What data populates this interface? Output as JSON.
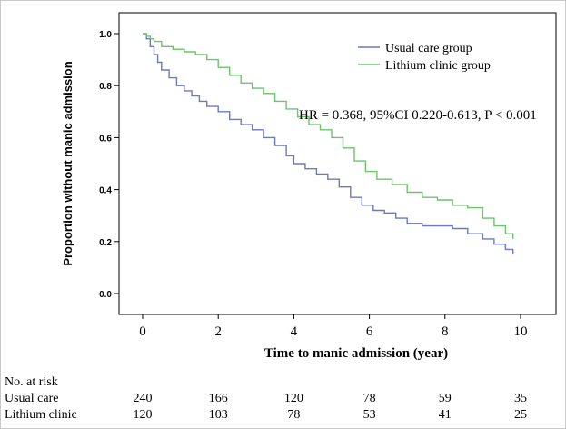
{
  "chart_data": {
    "type": "line",
    "title": "",
    "xlabel": "Time to manic admission (year)",
    "ylabel": "Proportion without manic admission",
    "xlim": [
      0,
      10
    ],
    "ylim": [
      0,
      1
    ],
    "x_ticks": [
      0,
      2,
      4,
      6,
      8,
      10
    ],
    "y_ticks": [
      0.0,
      0.2,
      0.4,
      0.6,
      0.8,
      1.0
    ],
    "y_tick_labels": [
      "0.0",
      "0.2",
      "0.4",
      "0.6",
      "0.8",
      "1.0"
    ],
    "grid": false,
    "legend_position": "top-right",
    "annotation": "HR = 0.368, 95%CI 0.220-0.613, P < 0.001",
    "series": [
      {
        "name": "Usual care group",
        "color": "#6a78c6",
        "x": [
          0,
          0.1,
          0.2,
          0.3,
          0.4,
          0.5,
          0.7,
          0.9,
          1.1,
          1.3,
          1.5,
          1.7,
          2.0,
          2.3,
          2.6,
          2.9,
          3.2,
          3.5,
          3.8,
          4.0,
          4.3,
          4.6,
          4.9,
          5.2,
          5.5,
          5.8,
          6.1,
          6.4,
          6.7,
          7.0,
          7.4,
          7.8,
          8.2,
          8.6,
          9.0,
          9.3,
          9.6,
          9.8
        ],
        "y": [
          1.0,
          0.98,
          0.95,
          0.92,
          0.89,
          0.86,
          0.83,
          0.8,
          0.78,
          0.76,
          0.74,
          0.72,
          0.7,
          0.67,
          0.65,
          0.63,
          0.6,
          0.57,
          0.53,
          0.5,
          0.48,
          0.46,
          0.44,
          0.41,
          0.37,
          0.34,
          0.32,
          0.31,
          0.29,
          0.27,
          0.26,
          0.26,
          0.25,
          0.23,
          0.21,
          0.19,
          0.17,
          0.15
        ]
      },
      {
        "name": "Lithium clinic group",
        "color": "#6cc46c",
        "x": [
          0,
          0.1,
          0.2,
          0.3,
          0.5,
          0.8,
          1.1,
          1.4,
          1.7,
          2.0,
          2.3,
          2.6,
          2.9,
          3.2,
          3.5,
          3.8,
          4.1,
          4.4,
          4.7,
          5.0,
          5.3,
          5.6,
          5.9,
          6.2,
          6.6,
          7.0,
          7.4,
          7.8,
          8.2,
          8.6,
          9.0,
          9.3,
          9.6,
          9.8
        ],
        "y": [
          1.0,
          0.99,
          0.98,
          0.97,
          0.95,
          0.94,
          0.93,
          0.92,
          0.9,
          0.87,
          0.84,
          0.81,
          0.79,
          0.77,
          0.74,
          0.71,
          0.68,
          0.65,
          0.63,
          0.6,
          0.56,
          0.51,
          0.47,
          0.44,
          0.42,
          0.39,
          0.37,
          0.36,
          0.34,
          0.33,
          0.29,
          0.26,
          0.23,
          0.21
        ]
      }
    ]
  },
  "risk_table": {
    "title": "No. at risk",
    "columns": [
      0,
      2,
      4,
      6,
      8,
      10
    ],
    "rows": [
      {
        "label": "Usual care",
        "values": [
          "240",
          "166",
          "120",
          "78",
          "59",
          "35"
        ]
      },
      {
        "label": "Lithium clinic",
        "values": [
          "120",
          "103",
          "78",
          "53",
          "41",
          "25"
        ]
      }
    ]
  }
}
